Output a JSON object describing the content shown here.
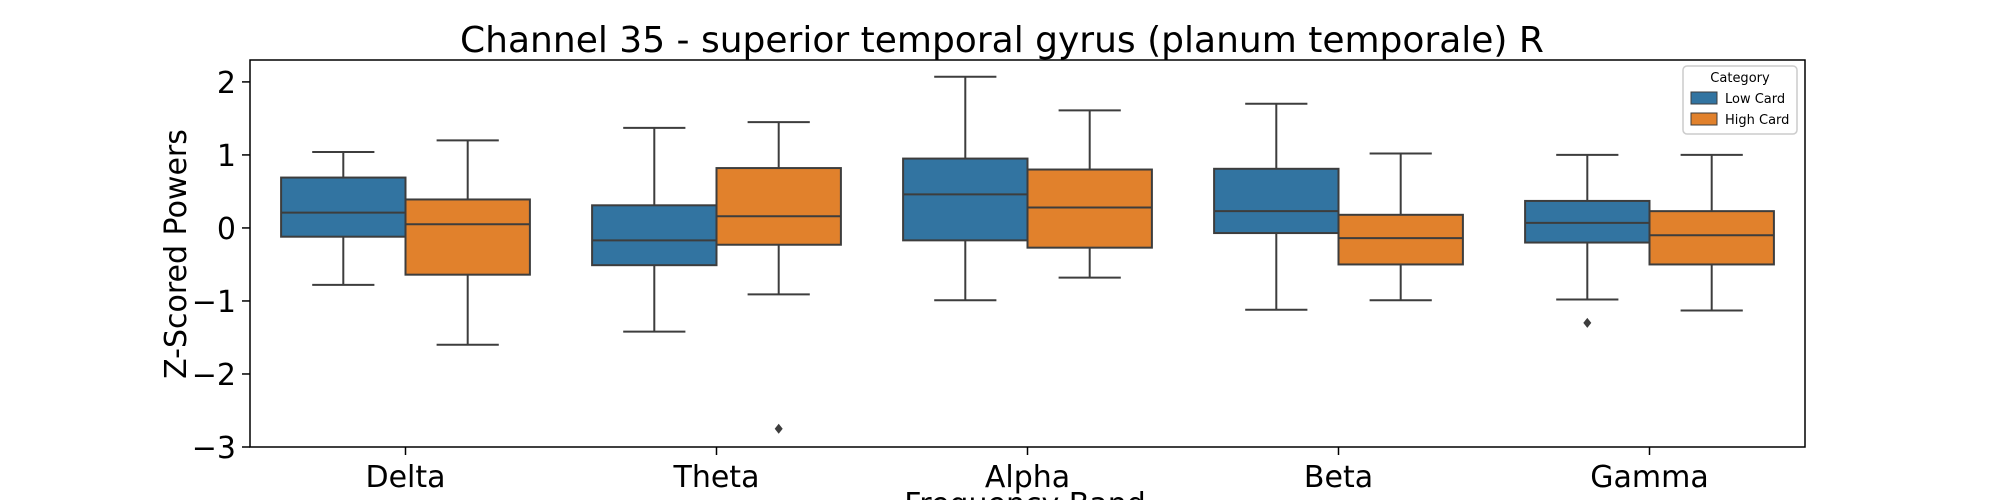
{
  "chart_data": {
    "type": "boxplot",
    "title": "Channel 35 - superior temporal gyrus (planum temporale) R",
    "xlabel": "Frequency Band",
    "ylabel": "Z-Scored Powers",
    "categories": [
      "Delta",
      "Theta",
      "Alpha",
      "Beta",
      "Gamma"
    ],
    "ylim": [
      -3.0,
      2.3
    ],
    "yticks": [
      2,
      1,
      0,
      -1,
      -2,
      -3
    ],
    "ytick_labels": [
      "2",
      "1",
      "0",
      "−1",
      "−2",
      "−3"
    ],
    "grid": false,
    "legend": {
      "title": "Category",
      "placement": "top-right",
      "entries": [
        "Low Card",
        "High Card"
      ]
    },
    "series": [
      {
        "name": "Low Card",
        "color": "#3274a1",
        "boxes": [
          {
            "min": -0.78,
            "q1": -0.12,
            "median": 0.21,
            "q3": 0.69,
            "max": 1.04,
            "outliers": []
          },
          {
            "min": -1.42,
            "q1": -0.51,
            "median": -0.17,
            "q3": 0.31,
            "max": 1.37,
            "outliers": []
          },
          {
            "min": -0.99,
            "q1": -0.17,
            "median": 0.46,
            "q3": 0.95,
            "max": 2.07,
            "outliers": []
          },
          {
            "min": -1.12,
            "q1": -0.07,
            "median": 0.23,
            "q3": 0.81,
            "max": 1.7,
            "outliers": []
          },
          {
            "min": -0.98,
            "q1": -0.2,
            "median": 0.07,
            "q3": 0.37,
            "max": 1.0,
            "outliers": [
              -1.3
            ]
          }
        ]
      },
      {
        "name": "High Card",
        "color": "#e1812c",
        "boxes": [
          {
            "min": -1.6,
            "q1": -0.64,
            "median": 0.05,
            "q3": 0.39,
            "max": 1.2,
            "outliers": []
          },
          {
            "min": -0.91,
            "q1": -0.23,
            "median": 0.16,
            "q3": 0.82,
            "max": 1.45,
            "outliers": [
              -2.75
            ]
          },
          {
            "min": -0.68,
            "q1": -0.27,
            "median": 0.28,
            "q3": 0.8,
            "max": 1.61,
            "outliers": []
          },
          {
            "min": -0.99,
            "q1": -0.5,
            "median": -0.14,
            "q3": 0.18,
            "max": 1.02,
            "outliers": []
          },
          {
            "min": -1.13,
            "q1": -0.5,
            "median": -0.1,
            "q3": 0.23,
            "max": 1.0,
            "outliers": []
          }
        ]
      }
    ]
  }
}
